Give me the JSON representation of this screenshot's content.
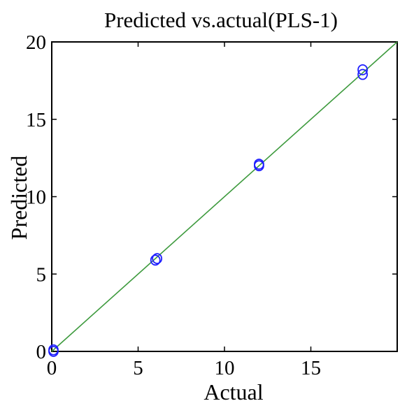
{
  "chart_data": {
    "type": "scatter",
    "title": "Predicted vs.actual(PLS-1)",
    "xlabel": "Actual",
    "ylabel": "Predicted",
    "xlim": [
      0,
      20
    ],
    "ylim": [
      0,
      20
    ],
    "xticks": [
      "0",
      "5",
      "10",
      "15"
    ],
    "yticks": [
      "0",
      "5",
      "10",
      "15",
      "20"
    ],
    "grid": false,
    "legend": "none",
    "series": [
      {
        "marker": "circle",
        "color": "#1f1fff",
        "points": [
          {
            "x": 0.1,
            "y": 0.0
          },
          {
            "x": 0.1,
            "y": 0.1
          },
          {
            "x": 6.0,
            "y": 5.9
          },
          {
            "x": 6.1,
            "y": 6.0
          },
          {
            "x": 12.0,
            "y": 12.0
          },
          {
            "x": 12.0,
            "y": 12.1
          },
          {
            "x": 18.0,
            "y": 17.9
          },
          {
            "x": 18.0,
            "y": 18.2
          }
        ]
      }
    ],
    "reference_line": {
      "from": [
        0,
        0
      ],
      "to": [
        20,
        20
      ],
      "color": "#3d9a3d"
    }
  }
}
